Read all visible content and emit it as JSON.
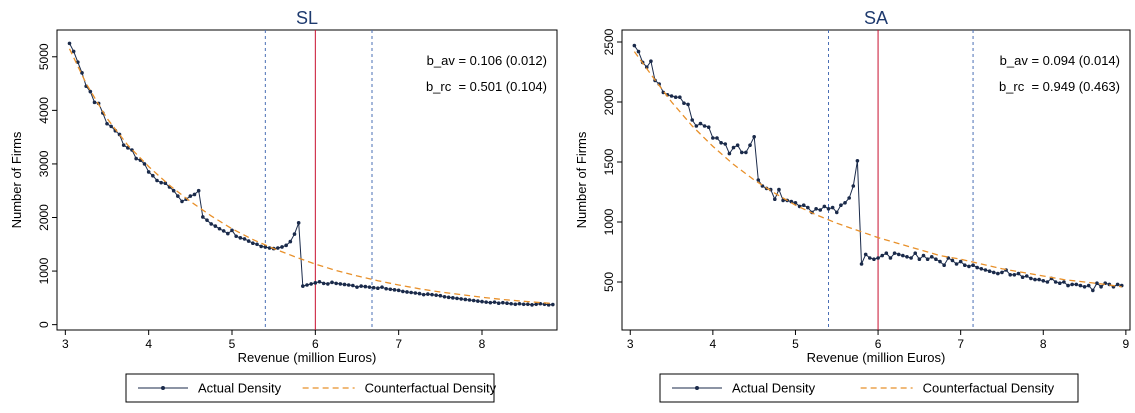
{
  "chart_data": [
    {
      "type": "line",
      "title": "SL",
      "xlabel": "Revenue (million Euros)",
      "ylabel": "Number of Firms",
      "xlim": [
        2.9,
        8.9
      ],
      "ylim": [
        -100,
        5500
      ],
      "xticks": [
        "3",
        "4",
        "5",
        "6",
        "7",
        "8"
      ],
      "xtick_values": [
        3,
        4,
        5,
        6,
        7,
        8
      ],
      "yticks": [
        "0",
        "1000",
        "2000",
        "3000",
        "4000",
        "5000"
      ],
      "ytick_values": [
        0,
        1000,
        2000,
        3000,
        4000,
        5000
      ],
      "annotations": [
        "b_av = 0.106 (0.012)",
        "b_rc  = 0.501 (0.104)"
      ],
      "vlines": [
        {
          "x": 5.4,
          "style": "dashed",
          "color": "#4a6fb5"
        },
        {
          "x": 6.0,
          "style": "solid",
          "color": "#c8102e"
        },
        {
          "x": 6.68,
          "style": "dashed",
          "color": "#4a6fb5"
        }
      ],
      "legend": {
        "position": "bottom",
        "entries": [
          "Actual Density",
          "Counterfactual Density"
        ]
      },
      "series": [
        {
          "name": "Actual Density",
          "color": "#1a2a4a",
          "marker": "dot",
          "x": [
            3.05,
            3.1,
            3.15,
            3.2,
            3.25,
            3.3,
            3.35,
            3.4,
            3.45,
            3.5,
            3.55,
            3.6,
            3.65,
            3.7,
            3.75,
            3.8,
            3.85,
            3.9,
            3.95,
            4.0,
            4.05,
            4.1,
            4.15,
            4.2,
            4.25,
            4.3,
            4.35,
            4.4,
            4.45,
            4.5,
            4.55,
            4.6,
            4.65,
            4.7,
            4.75,
            4.8,
            4.85,
            4.9,
            4.95,
            5.0,
            5.05,
            5.1,
            5.15,
            5.2,
            5.25,
            5.3,
            5.35,
            5.4,
            5.45,
            5.5,
            5.55,
            5.6,
            5.65,
            5.7,
            5.75,
            5.8,
            5.85,
            5.9,
            5.95,
            6.0,
            6.05,
            6.1,
            6.15,
            6.2,
            6.25,
            6.3,
            6.35,
            6.4,
            6.45,
            6.5,
            6.55,
            6.6,
            6.65,
            6.7,
            6.75,
            6.8,
            6.85,
            6.9,
            6.95,
            7.0,
            7.05,
            7.1,
            7.15,
            7.2,
            7.25,
            7.3,
            7.35,
            7.4,
            7.45,
            7.5,
            7.55,
            7.6,
            7.65,
            7.7,
            7.75,
            7.8,
            7.85,
            7.9,
            7.95,
            8.0,
            8.05,
            8.1,
            8.15,
            8.2,
            8.25,
            8.3,
            8.35,
            8.4,
            8.45,
            8.5,
            8.55,
            8.6,
            8.65,
            8.7,
            8.75,
            8.8,
            8.85
          ],
          "y": [
            5250,
            5100,
            4900,
            4700,
            4450,
            4350,
            4150,
            4130,
            3950,
            3750,
            3700,
            3620,
            3550,
            3350,
            3300,
            3260,
            3100,
            3070,
            3000,
            2850,
            2780,
            2690,
            2650,
            2640,
            2570,
            2500,
            2400,
            2300,
            2340,
            2400,
            2430,
            2500,
            2010,
            1950,
            1880,
            1840,
            1790,
            1750,
            1700,
            1760,
            1650,
            1620,
            1600,
            1560,
            1520,
            1500,
            1460,
            1450,
            1430,
            1420,
            1430,
            1450,
            1480,
            1550,
            1690,
            1900,
            720,
            740,
            760,
            780,
            800,
            770,
            760,
            790,
            770,
            760,
            750,
            740,
            730,
            700,
            720,
            710,
            700,
            690,
            680,
            700,
            670,
            660,
            650,
            640,
            620,
            610,
            600,
            590,
            580,
            560,
            570,
            560,
            550,
            540,
            520,
            510,
            500,
            490,
            480,
            470,
            460,
            450,
            440,
            430,
            420,
            410,
            420,
            400,
            410,
            400,
            390,
            380,
            390,
            380,
            380,
            370,
            380,
            390,
            380,
            370,
            375
          ],
          "_comment": "values in data units"
        },
        {
          "name": "Counterfactual Density",
          "color": "#e8902a",
          "style": "dashed",
          "x": [
            3.05,
            3.25,
            3.5,
            3.75,
            4.0,
            4.25,
            4.5,
            4.75,
            5.0,
            5.25,
            5.5,
            5.75,
            6.0,
            6.25,
            6.5,
            6.75,
            7.0,
            7.25,
            7.5,
            7.75,
            8.0,
            8.25,
            8.5,
            8.85
          ],
          "y": [
            5150,
            4500,
            3850,
            3350,
            2950,
            2600,
            2300,
            2030,
            1790,
            1590,
            1420,
            1270,
            1130,
            1010,
            910,
            820,
            740,
            670,
            610,
            560,
            510,
            470,
            435,
            395
          ]
        }
      ]
    },
    {
      "type": "line",
      "title": "SA",
      "xlabel": "Revenue (million Euros)",
      "ylabel": "Number of Firms",
      "xlim": [
        2.9,
        9.05
      ],
      "ylim": [
        100,
        2600
      ],
      "xticks": [
        "3",
        "4",
        "5",
        "6",
        "7",
        "8",
        "9"
      ],
      "xtick_values": [
        3,
        4,
        5,
        6,
        7,
        8,
        9
      ],
      "yticks": [
        "500",
        "1000",
        "1500",
        "2000",
        "2500"
      ],
      "ytick_values": [
        500,
        1000,
        1500,
        2000,
        2500
      ],
      "annotations": [
        "b_av = 0.094 (0.014)",
        "b_rc  = 0.949 (0.463)"
      ],
      "vlines": [
        {
          "x": 5.4,
          "style": "dashed",
          "color": "#4a6fb5"
        },
        {
          "x": 6.0,
          "style": "solid",
          "color": "#c8102e"
        },
        {
          "x": 7.15,
          "style": "dashed",
          "color": "#4a6fb5"
        }
      ],
      "legend": {
        "position": "bottom",
        "entries": [
          "Actual Density",
          "Counterfactual Density"
        ]
      },
      "series": [
        {
          "name": "Actual Density",
          "color": "#1a2a4a",
          "marker": "dot",
          "x": [
            3.05,
            3.1,
            3.15,
            3.2,
            3.25,
            3.3,
            3.35,
            3.4,
            3.45,
            3.5,
            3.55,
            3.6,
            3.65,
            3.7,
            3.75,
            3.8,
            3.85,
            3.9,
            3.95,
            4.0,
            4.05,
            4.1,
            4.15,
            4.2,
            4.25,
            4.3,
            4.35,
            4.4,
            4.45,
            4.5,
            4.55,
            4.6,
            4.65,
            4.7,
            4.75,
            4.8,
            4.85,
            4.9,
            4.95,
            5.0,
            5.05,
            5.1,
            5.15,
            5.2,
            5.25,
            5.3,
            5.35,
            5.4,
            5.45,
            5.5,
            5.55,
            5.6,
            5.65,
            5.7,
            5.75,
            5.8,
            5.85,
            5.9,
            5.95,
            6.0,
            6.05,
            6.1,
            6.15,
            6.2,
            6.25,
            6.3,
            6.35,
            6.4,
            6.45,
            6.5,
            6.55,
            6.6,
            6.65,
            6.7,
            6.75,
            6.8,
            6.85,
            6.9,
            6.95,
            7.0,
            7.05,
            7.1,
            7.15,
            7.2,
            7.25,
            7.3,
            7.35,
            7.4,
            7.45,
            7.5,
            7.55,
            7.6,
            7.65,
            7.7,
            7.75,
            7.8,
            7.85,
            7.9,
            7.95,
            8.0,
            8.05,
            8.1,
            8.15,
            8.2,
            8.25,
            8.3,
            8.35,
            8.4,
            8.45,
            8.5,
            8.55,
            8.6,
            8.65,
            8.7,
            8.75,
            8.8,
            8.85,
            8.9,
            8.95
          ],
          "y": [
            2470,
            2420,
            2330,
            2290,
            2340,
            2180,
            2150,
            2080,
            2060,
            2050,
            2040,
            2040,
            1990,
            1980,
            1850,
            1800,
            1820,
            1800,
            1790,
            1700,
            1700,
            1660,
            1650,
            1570,
            1620,
            1640,
            1580,
            1580,
            1640,
            1710,
            1350,
            1300,
            1280,
            1270,
            1190,
            1270,
            1180,
            1180,
            1170,
            1160,
            1130,
            1140,
            1120,
            1080,
            1110,
            1100,
            1130,
            1110,
            1120,
            1080,
            1140,
            1160,
            1200,
            1300,
            1510,
            650,
            730,
            700,
            690,
            700,
            720,
            740,
            700,
            740,
            730,
            720,
            710,
            700,
            740,
            690,
            720,
            690,
            710,
            690,
            670,
            640,
            700,
            680,
            650,
            670,
            640,
            630,
            640,
            620,
            610,
            600,
            590,
            580,
            570,
            580,
            600,
            560,
            560,
            570,
            540,
            550,
            530,
            520,
            520,
            510,
            500,
            530,
            500,
            490,
            500,
            470,
            480,
            480,
            470,
            460,
            470,
            430,
            490,
            460,
            490,
            480,
            460,
            480,
            470
          ],
          "_comment": "values in data units"
        },
        {
          "name": "Counterfactual Density",
          "color": "#e8902a",
          "style": "dashed",
          "x": [
            3.05,
            3.25,
            3.5,
            3.75,
            4.0,
            4.25,
            4.5,
            4.75,
            5.0,
            5.25,
            5.5,
            5.75,
            6.0,
            6.25,
            6.5,
            6.75,
            7.0,
            7.25,
            7.5,
            7.75,
            8.0,
            8.25,
            8.5,
            8.75,
            8.95
          ],
          "y": [
            2420,
            2230,
            2000,
            1800,
            1630,
            1480,
            1350,
            1240,
            1140,
            1060,
            990,
            930,
            870,
            820,
            770,
            720,
            690,
            650,
            610,
            580,
            550,
            520,
            500,
            480,
            460
          ]
        }
      ]
    }
  ]
}
